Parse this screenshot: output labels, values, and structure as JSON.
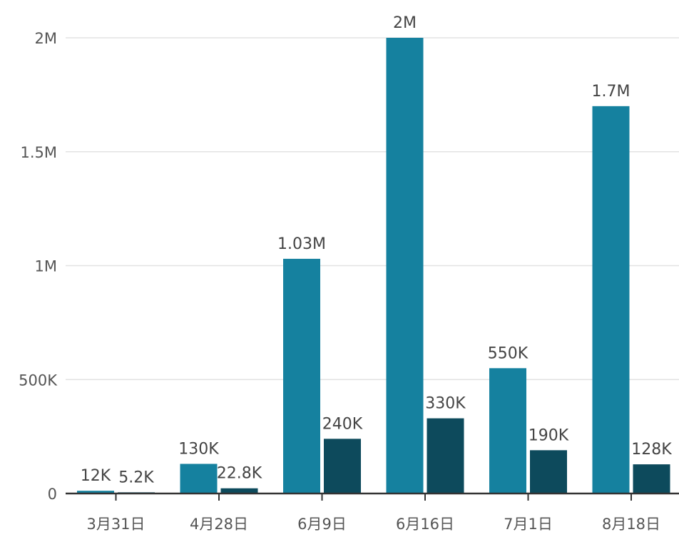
{
  "chart_data": {
    "type": "bar",
    "categories": [
      "3月31日",
      "4月28日",
      "6月9日",
      "6月16日",
      "7月1日",
      "8月18日"
    ],
    "series": [
      {
        "values": [
          12000,
          130000,
          1030000,
          2000000,
          550000,
          1700000
        ],
        "labels": [
          "12K",
          "130K",
          "1.03M",
          "2M",
          "550K",
          "1.7M"
        ],
        "color": "#15819f"
      },
      {
        "values": [
          5200,
          22800,
          240000,
          330000,
          190000,
          128000
        ],
        "labels": [
          "5.2K",
          "22.8K",
          "240K",
          "330K",
          "190K",
          "128K"
        ],
        "color": "#0d4a5c"
      }
    ],
    "yticks": [
      {
        "value": 0,
        "label": "0"
      },
      {
        "value": 500000,
        "label": "500K"
      },
      {
        "value": 1000000,
        "label": "1M"
      },
      {
        "value": 1500000,
        "label": "1.5M"
      },
      {
        "value": 2000000,
        "label": "2M"
      }
    ],
    "ylim": [
      0,
      2000000
    ],
    "grid": true,
    "legend": false,
    "title": "",
    "xlabel": "",
    "ylabel": ""
  }
}
